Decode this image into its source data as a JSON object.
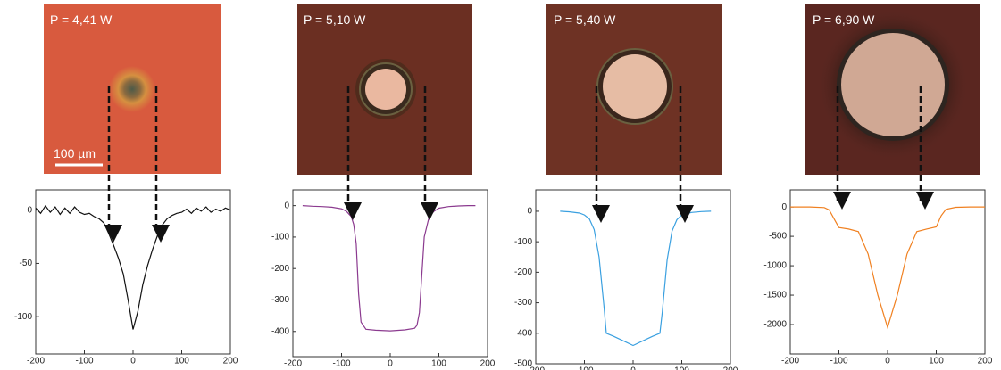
{
  "chart_data": [
    {
      "type": "line",
      "title": "P = 4,41 W",
      "annotation": "100 µm",
      "color": "#111111",
      "x": [
        -200,
        -190,
        -180,
        -170,
        -160,
        -150,
        -140,
        -130,
        -120,
        -110,
        -100,
        -90,
        -80,
        -70,
        -60,
        -50,
        -40,
        -30,
        -20,
        -10,
        0,
        10,
        20,
        30,
        40,
        50,
        60,
        70,
        80,
        90,
        100,
        110,
        120,
        130,
        140,
        150,
        160,
        170,
        180,
        190,
        200
      ],
      "values": [
        2,
        -3,
        4,
        -2,
        3,
        -4,
        2,
        -3,
        3,
        -2,
        -4,
        -3,
        -6,
        -8,
        -12,
        -22,
        -33,
        -45,
        -60,
        -85,
        -112,
        -95,
        -70,
        -52,
        -37,
        -24,
        -14,
        -8,
        -5,
        -3,
        -2,
        1,
        -3,
        2,
        -1,
        3,
        -2,
        1,
        -1,
        2,
        0
      ],
      "xlim": [
        -200,
        200
      ],
      "xticks": [
        -200,
        -100,
        0,
        100,
        200
      ],
      "ylim": [
        -135,
        19
      ],
      "yticks": [
        -100,
        -50,
        0
      ]
    },
    {
      "type": "line",
      "title": "P = 5,10 W",
      "color": "#8b3a8f",
      "x": [
        -180,
        -160,
        -140,
        -120,
        -100,
        -90,
        -80,
        -75,
        -70,
        -65,
        -60,
        -50,
        -30,
        0,
        30,
        50,
        55,
        60,
        65,
        70,
        80,
        90,
        100,
        120,
        140,
        160,
        175
      ],
      "values": [
        0,
        -2,
        -3,
        -5,
        -10,
        -18,
        -35,
        -60,
        -120,
        -280,
        -370,
        -393,
        -396,
        -398,
        -395,
        -390,
        -380,
        -340,
        -220,
        -100,
        -35,
        -18,
        -8,
        -3,
        -1,
        0,
        0
      ],
      "xlim": [
        -200,
        200
      ],
      "xticks": [
        -200,
        -100,
        0,
        100,
        200
      ],
      "ylim": [
        -480,
        50
      ],
      "yticks": [
        -400,
        -300,
        -200,
        -100,
        0
      ]
    },
    {
      "type": "line",
      "title": "P = 5,40 W",
      "color": "#3aa0e0",
      "x": [
        -150,
        -130,
        -110,
        -100,
        -90,
        -80,
        -70,
        -60,
        -55,
        -40,
        -20,
        0,
        20,
        40,
        55,
        60,
        70,
        80,
        90,
        100,
        120,
        140,
        160
      ],
      "values": [
        0,
        -2,
        -6,
        -12,
        -25,
        -60,
        -150,
        -310,
        -400,
        -410,
        -425,
        -440,
        -425,
        -410,
        -400,
        -330,
        -160,
        -65,
        -28,
        -12,
        -4,
        -1,
        0
      ],
      "xlim": [
        -200,
        200
      ],
      "xticks": [
        -200,
        -100,
        0,
        100,
        200
      ],
      "ylim": [
        -500,
        70
      ],
      "yticks": [
        -500,
        -400,
        -300,
        -200,
        -100,
        0
      ]
    },
    {
      "type": "line",
      "title": "P = 6,90 W",
      "color": "#f08020",
      "x": [
        -200,
        -160,
        -130,
        -120,
        -110,
        -100,
        -80,
        -60,
        -40,
        -20,
        0,
        20,
        40,
        60,
        80,
        100,
        110,
        120,
        140,
        170,
        200
      ],
      "values": [
        0,
        0,
        -10,
        -50,
        -200,
        -350,
        -375,
        -420,
        -800,
        -1500,
        -2050,
        -1500,
        -800,
        -420,
        -375,
        -340,
        -150,
        -40,
        -5,
        0,
        0
      ],
      "xlim": [
        -200,
        200
      ],
      "xticks": [
        -200,
        -100,
        0,
        100,
        200
      ],
      "ylim": [
        -2500,
        290
      ],
      "yticks": [
        -2000,
        -1500,
        -1000,
        -500,
        0
      ]
    }
  ]
}
